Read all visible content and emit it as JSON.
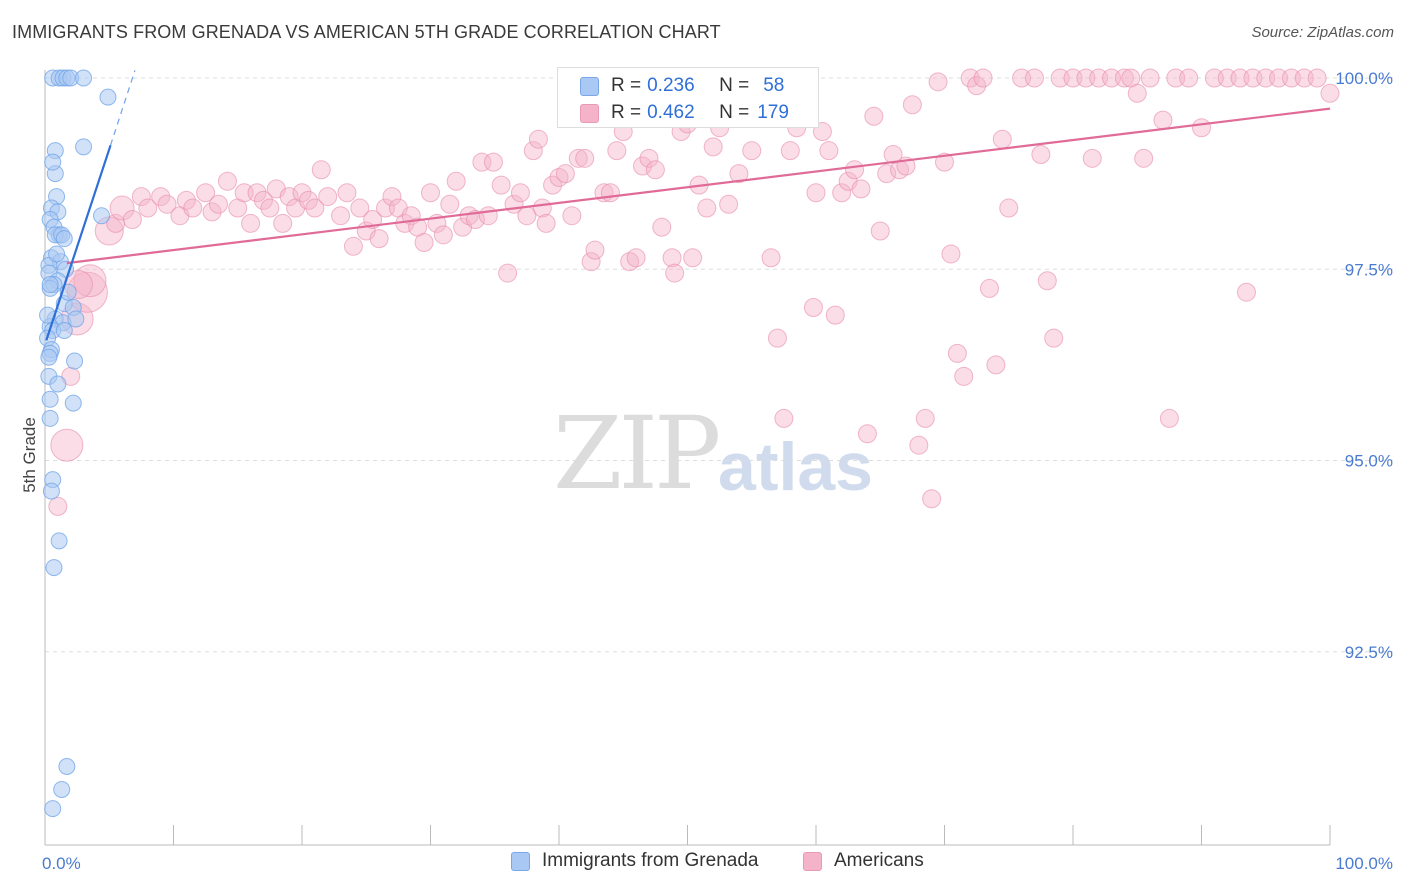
{
  "title": "IMMIGRANTS FROM GRENADA VS AMERICAN 5TH GRADE CORRELATION CHART",
  "source": "Source: ZipAtlas.com",
  "watermark": {
    "zip": "ZIP",
    "atlas": "atlas"
  },
  "legend_top": {
    "rows": [
      {
        "r_label": "R = ",
        "r_value": "0.236",
        "n_label": "N = ",
        "n_value": "58",
        "color": "#a9c8f3"
      },
      {
        "r_label": "R = ",
        "r_value": "0.462",
        "n_label": "N = ",
        "n_value": "179",
        "color": "#f5b3c9"
      }
    ]
  },
  "legend_bottom": {
    "items": [
      {
        "label": "Immigrants from Grenada",
        "color": "#a9c8f3"
      },
      {
        "label": "Americans",
        "color": "#f5b3c9"
      }
    ]
  },
  "chart_data": {
    "type": "scatter",
    "title": "IMMIGRANTS FROM GRENADA VS AMERICAN 5TH GRADE CORRELATION CHART",
    "xlabel": "",
    "ylabel": "5th Grade",
    "xlim": [
      0,
      100
    ],
    "ylim": [
      90.2,
      100.2
    ],
    "x_tick_labels": [
      "0.0%",
      "100.0%"
    ],
    "y_ticks": [
      92.5,
      95.0,
      97.5,
      100.0
    ],
    "y_tick_labels": [
      "92.5%",
      "95.0%",
      "97.5%",
      "100.0%"
    ],
    "grid": "horizontal dashed",
    "series": [
      {
        "name": "Immigrants from Grenada",
        "color": "#6fa3e8",
        "fill": "#a9c8f3",
        "r": 0.236,
        "n": 58,
        "trend": {
          "x": [
            0.1,
            5.1
          ],
          "y": [
            96.57,
            99.12
          ]
        },
        "trend_dashed": {
          "x": [
            5.1,
            7.0
          ],
          "y": [
            99.12,
            100.1
          ]
        },
        "points": [
          [
            0.6,
            100.0
          ],
          [
            1.1,
            100.0
          ],
          [
            1.4,
            100.0
          ],
          [
            1.7,
            100.0
          ],
          [
            2.0,
            100.0
          ],
          [
            3.0,
            100.0
          ],
          [
            4.9,
            99.75
          ],
          [
            0.8,
            99.05
          ],
          [
            3.0,
            99.1
          ],
          [
            0.8,
            98.75
          ],
          [
            0.9,
            98.45
          ],
          [
            0.5,
            98.3
          ],
          [
            1.0,
            98.25
          ],
          [
            0.4,
            98.15
          ],
          [
            4.4,
            98.2
          ],
          [
            0.7,
            98.05
          ],
          [
            1.1,
            97.95
          ],
          [
            0.8,
            97.95
          ],
          [
            1.3,
            97.95
          ],
          [
            1.5,
            97.9
          ],
          [
            0.5,
            97.65
          ],
          [
            1.2,
            97.6
          ],
          [
            0.3,
            97.55
          ],
          [
            1.6,
            97.5
          ],
          [
            0.3,
            97.45
          ],
          [
            1.0,
            97.35
          ],
          [
            0.7,
            97.3
          ],
          [
            0.4,
            97.25
          ],
          [
            1.5,
            97.05
          ],
          [
            2.2,
            97.0
          ],
          [
            0.8,
            96.85
          ],
          [
            1.4,
            96.8
          ],
          [
            2.4,
            96.85
          ],
          [
            0.4,
            96.75
          ],
          [
            0.6,
            96.7
          ],
          [
            1.5,
            96.7
          ],
          [
            0.2,
            96.6
          ],
          [
            0.5,
            96.45
          ],
          [
            0.4,
            96.4
          ],
          [
            0.3,
            96.35
          ],
          [
            2.3,
            96.3
          ],
          [
            0.3,
            96.1
          ],
          [
            1.0,
            96.0
          ],
          [
            0.4,
            95.8
          ],
          [
            2.2,
            95.75
          ],
          [
            0.4,
            95.55
          ],
          [
            0.6,
            94.75
          ],
          [
            0.5,
            94.6
          ],
          [
            1.1,
            93.95
          ],
          [
            0.7,
            93.6
          ],
          [
            1.7,
            91.0
          ],
          [
            1.3,
            90.7
          ],
          [
            0.6,
            90.45
          ],
          [
            0.4,
            97.3
          ],
          [
            0.9,
            97.7
          ],
          [
            0.2,
            96.9
          ],
          [
            0.6,
            98.9
          ],
          [
            1.8,
            97.2
          ]
        ]
      },
      {
        "name": "Americans",
        "color": "#e88aab",
        "fill": "#f5b3c9",
        "r": 0.462,
        "n": 179,
        "trend": {
          "x": [
            1.7,
            100.0
          ],
          "y": [
            97.58,
            99.6
          ]
        },
        "points": [
          [
            1.0,
            94.4
          ],
          [
            1.7,
            95.2
          ],
          [
            2.0,
            96.1
          ],
          [
            2.5,
            96.85
          ],
          [
            3.3,
            97.2
          ],
          [
            3.5,
            97.35
          ],
          [
            2.6,
            97.3
          ],
          [
            5.0,
            98.0
          ],
          [
            5.5,
            98.1
          ],
          [
            6.0,
            98.3
          ],
          [
            6.8,
            98.15
          ],
          [
            7.5,
            98.45
          ],
          [
            8.0,
            98.3
          ],
          [
            9.0,
            98.45
          ],
          [
            9.5,
            98.35
          ],
          [
            10.5,
            98.2
          ],
          [
            11.0,
            98.4
          ],
          [
            11.5,
            98.3
          ],
          [
            12.5,
            98.5
          ],
          [
            13.0,
            98.25
          ],
          [
            13.5,
            98.35
          ],
          [
            14.2,
            98.65
          ],
          [
            15.0,
            98.3
          ],
          [
            15.5,
            98.5
          ],
          [
            16.0,
            98.1
          ],
          [
            16.5,
            98.5
          ],
          [
            17.0,
            98.4
          ],
          [
            17.5,
            98.3
          ],
          [
            18.0,
            98.55
          ],
          [
            18.5,
            98.1
          ],
          [
            19.0,
            98.45
          ],
          [
            19.5,
            98.3
          ],
          [
            20.0,
            98.5
          ],
          [
            20.5,
            98.4
          ],
          [
            21.0,
            98.3
          ],
          [
            21.5,
            98.8
          ],
          [
            22.0,
            98.45
          ],
          [
            23.0,
            98.2
          ],
          [
            23.5,
            98.5
          ],
          [
            24.0,
            97.8
          ],
          [
            24.5,
            98.3
          ],
          [
            25.0,
            98.0
          ],
          [
            25.5,
            98.15
          ],
          [
            26.0,
            97.9
          ],
          [
            26.5,
            98.3
          ],
          [
            27.0,
            98.45
          ],
          [
            27.5,
            98.3
          ],
          [
            28.0,
            98.1
          ],
          [
            28.5,
            98.2
          ],
          [
            29.0,
            98.05
          ],
          [
            29.5,
            97.85
          ],
          [
            30.0,
            98.5
          ],
          [
            30.5,
            98.1
          ],
          [
            31.0,
            97.95
          ],
          [
            31.5,
            98.35
          ],
          [
            32.0,
            98.65
          ],
          [
            32.5,
            98.05
          ],
          [
            33.0,
            98.2
          ],
          [
            33.5,
            98.15
          ],
          [
            34.0,
            98.9
          ],
          [
            34.5,
            98.2
          ],
          [
            34.9,
            98.9
          ],
          [
            35.5,
            98.6
          ],
          [
            36.0,
            97.45
          ],
          [
            36.5,
            98.35
          ],
          [
            37.0,
            98.5
          ],
          [
            37.5,
            98.2
          ],
          [
            38.0,
            99.05
          ],
          [
            38.4,
            99.2
          ],
          [
            38.7,
            98.3
          ],
          [
            39.0,
            98.1
          ],
          [
            39.5,
            98.6
          ],
          [
            40.0,
            98.7
          ],
          [
            40.5,
            98.75
          ],
          [
            41.0,
            98.2
          ],
          [
            41.5,
            98.95
          ],
          [
            42.0,
            98.95
          ],
          [
            42.5,
            97.6
          ],
          [
            42.8,
            97.75
          ],
          [
            43.5,
            98.5
          ],
          [
            44.0,
            98.5
          ],
          [
            44.5,
            99.05
          ],
          [
            45.0,
            99.3
          ],
          [
            45.5,
            97.6
          ],
          [
            46.0,
            97.65
          ],
          [
            46.5,
            98.85
          ],
          [
            47.0,
            98.95
          ],
          [
            47.5,
            98.8
          ],
          [
            48.0,
            98.05
          ],
          [
            48.8,
            97.65
          ],
          [
            49.0,
            97.45
          ],
          [
            49.5,
            99.3
          ],
          [
            50.0,
            99.4
          ],
          [
            50.4,
            97.65
          ],
          [
            50.9,
            98.6
          ],
          [
            51.5,
            98.3
          ],
          [
            52.0,
            99.1
          ],
          [
            52.5,
            99.35
          ],
          [
            53.2,
            98.35
          ],
          [
            54.0,
            98.75
          ],
          [
            54.5,
            99.65
          ],
          [
            55.0,
            99.05
          ],
          [
            55.5,
            99.55
          ],
          [
            56.5,
            97.65
          ],
          [
            57.0,
            96.6
          ],
          [
            57.5,
            95.55
          ],
          [
            58.0,
            99.05
          ],
          [
            58.5,
            99.35
          ],
          [
            59.0,
            99.7
          ],
          [
            59.8,
            97.0
          ],
          [
            60.0,
            98.5
          ],
          [
            60.5,
            99.3
          ],
          [
            61.0,
            99.05
          ],
          [
            61.5,
            96.9
          ],
          [
            62.0,
            98.5
          ],
          [
            62.5,
            98.65
          ],
          [
            63.0,
            98.8
          ],
          [
            63.5,
            98.55
          ],
          [
            64.0,
            95.35
          ],
          [
            64.5,
            99.5
          ],
          [
            65.0,
            98.0
          ],
          [
            65.5,
            98.75
          ],
          [
            66.0,
            99.0
          ],
          [
            66.5,
            98.8
          ],
          [
            67.0,
            98.85
          ],
          [
            67.5,
            99.65
          ],
          [
            68.0,
            95.2
          ],
          [
            68.5,
            95.55
          ],
          [
            69.0,
            94.5
          ],
          [
            69.5,
            99.95
          ],
          [
            70.0,
            98.9
          ],
          [
            70.5,
            97.7
          ],
          [
            71.0,
            96.4
          ],
          [
            71.5,
            96.1
          ],
          [
            72.0,
            100.0
          ],
          [
            72.5,
            99.9
          ],
          [
            73.0,
            100.0
          ],
          [
            73.5,
            97.25
          ],
          [
            74.0,
            96.25
          ],
          [
            74.5,
            99.2
          ],
          [
            75.0,
            98.3
          ],
          [
            76.0,
            100.0
          ],
          [
            77.0,
            100.0
          ],
          [
            77.5,
            99.0
          ],
          [
            78.0,
            97.35
          ],
          [
            78.5,
            96.6
          ],
          [
            79.0,
            100.0
          ],
          [
            80.0,
            100.0
          ],
          [
            81.0,
            100.0
          ],
          [
            81.5,
            98.95
          ],
          [
            82.0,
            100.0
          ],
          [
            83.0,
            100.0
          ],
          [
            84.0,
            100.0
          ],
          [
            84.5,
            100.0
          ],
          [
            85.0,
            99.8
          ],
          [
            85.5,
            98.95
          ],
          [
            86.0,
            100.0
          ],
          [
            87.0,
            99.45
          ],
          [
            87.5,
            95.55
          ],
          [
            88.0,
            100.0
          ],
          [
            89.0,
            100.0
          ],
          [
            90.0,
            99.35
          ],
          [
            91.0,
            100.0
          ],
          [
            92.0,
            100.0
          ],
          [
            93.0,
            100.0
          ],
          [
            93.5,
            97.2
          ],
          [
            94.0,
            100.0
          ],
          [
            95.0,
            100.0
          ],
          [
            96.0,
            100.0
          ],
          [
            97.0,
            100.0
          ],
          [
            98.0,
            100.0
          ],
          [
            99.0,
            100.0
          ],
          [
            100.0,
            99.8
          ]
        ]
      }
    ]
  }
}
